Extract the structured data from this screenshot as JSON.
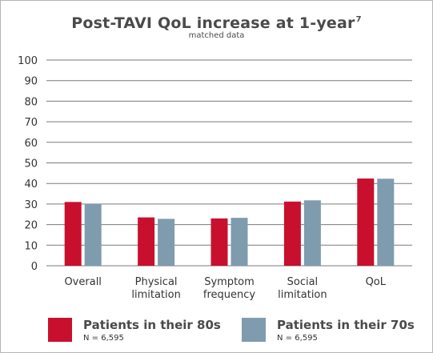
{
  "chart_data": {
    "type": "bar",
    "title": "Post-TAVI QoL increase at 1-year",
    "title_superscript": "7",
    "subtitle": "matched data",
    "categories": [
      "Overall",
      "Physical\nlimitation",
      "Symptom\nfrequency",
      "Social\nlimitation",
      "QoL"
    ],
    "series": [
      {
        "name": "Patients in their 80s",
        "n_label": "N = 6,595",
        "color": "#c8102e",
        "values": [
          31,
          23.5,
          23,
          31.2,
          42.4
        ]
      },
      {
        "name": "Patients in their 70s",
        "n_label": "N = 6,595",
        "color": "#7f9cae",
        "values": [
          30.1,
          22.8,
          23.3,
          31.8,
          42.3
        ]
      }
    ],
    "ylim": [
      0,
      100
    ],
    "yticks": [
      0,
      10,
      20,
      30,
      40,
      50,
      60,
      70,
      80,
      90,
      100
    ],
    "grid": true,
    "gridline_color": "#7a7a7a",
    "legend_position": "bottom"
  }
}
